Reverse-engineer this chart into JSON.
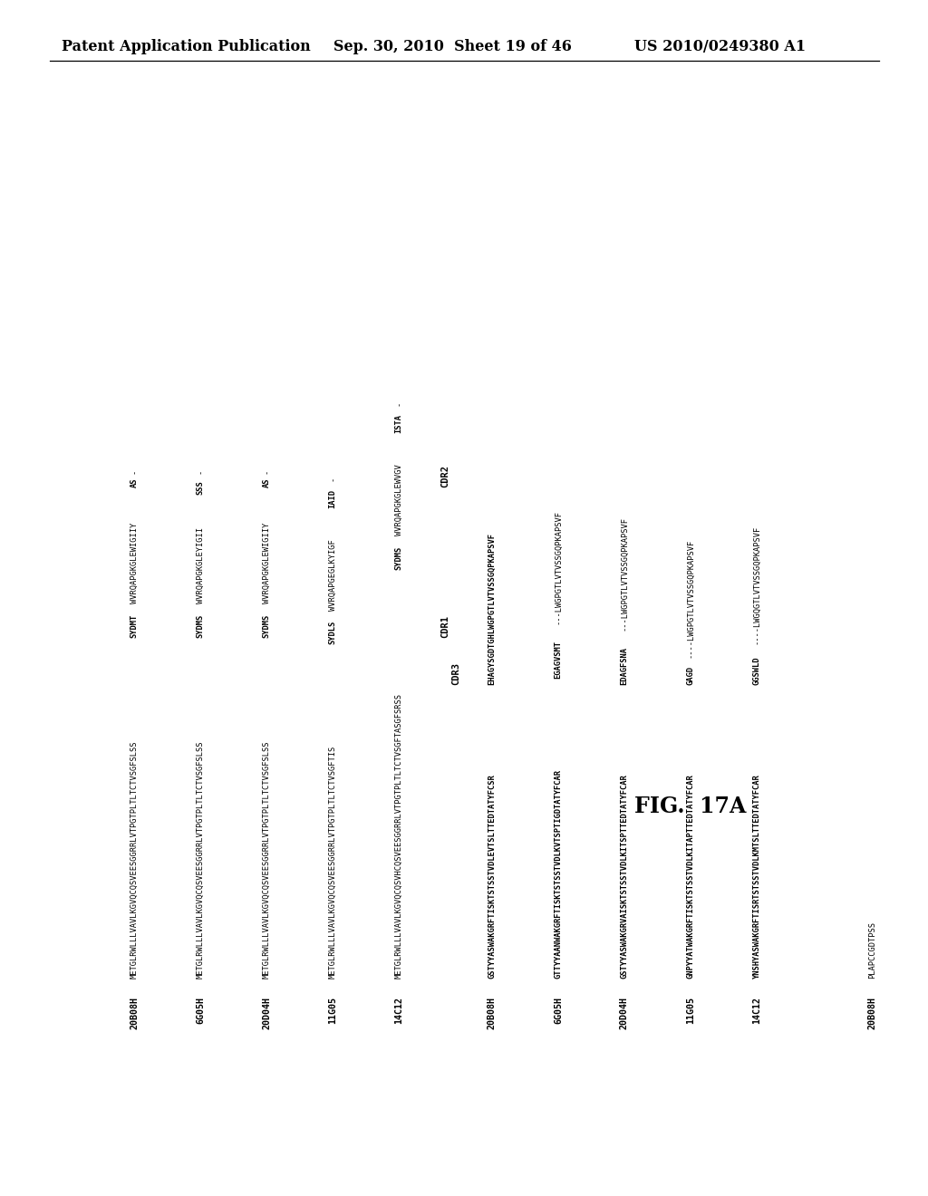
{
  "header_left": "Patent Application Publication",
  "header_center": "Sep. 30, 2010  Sheet 19 of 46",
  "header_right": "US 2010/0249380 A1",
  "figure_label": "FIG. 17A",
  "background_color": "#ffffff",
  "header_fontsize": 11.5,
  "section1_ids": [
    "20B08H",
    "6G05H",
    "20D04H",
    "11G05",
    "14C12"
  ],
  "section1_seqs": [
    [
      [
        "METGLRWLLLVAVLKGVQCQSVEESGGRRLVTPGTPLTLTCTVSGFSLSS",
        "normal"
      ],
      [
        "SYDMT",
        "bold"
      ],
      [
        "WVRQAPGKGLEWIGIIY",
        "normal"
      ],
      [
        "AS",
        "bold"
      ],
      [
        "-",
        "normal"
      ]
    ],
    [
      [
        "METGLRWLLLVAVLKGVQCQSVEESGGRRLVTPGTPLTLTCTVSGFSLSS",
        "normal"
      ],
      [
        "SYDMS",
        "bold"
      ],
      [
        "WVRQAPGKGLEYIGII",
        "normal"
      ],
      [
        "SSS",
        "bold"
      ],
      [
        "-",
        "normal"
      ]
    ],
    [
      [
        "METGLRWLLLVAVLKGVQCQSVEESGGRRLVTPGTPLTLTCTVSGFSLSS",
        "normal"
      ],
      [
        "SYDMS",
        "bold"
      ],
      [
        "WVRQAPGKGLEWIGIIY",
        "normal"
      ],
      [
        "AS",
        "bold"
      ],
      [
        "-",
        "normal"
      ]
    ],
    [
      [
        "METGLRWLLLVAVLKGVQCQSVEESGGRRLVTPGTPLTLTCTVSGFTIS",
        "normal"
      ],
      [
        "SYDLS",
        "bold"
      ],
      [
        "WVRQAPGEGLKYIGF",
        "normal"
      ],
      [
        "IAID",
        "bold"
      ],
      [
        "-",
        "normal"
      ]
    ],
    [
      [
        "METGLRWLLLVAVLKGVQCQSVHCQSVEESGGRRLVTPGTPLTLTCTVSGFTASGFSRSS",
        "normal"
      ],
      [
        "SYDMS",
        "bold"
      ],
      [
        "WVRQAPGKGLEWVGV",
        "normal"
      ],
      [
        "ISTA",
        "bold"
      ],
      [
        "-",
        "normal"
      ]
    ]
  ],
  "section2_ids": [
    "20B08H",
    "6G05H",
    "20D04H",
    "11G05",
    "14C12"
  ],
  "section2_seqs": [
    [
      [
        "GSTYYASWAKGRFTISKTSTSSTVDLEVTSLTTEDTATYFCSR",
        "bold"
      ],
      [
        "EHAGYSGDTGHLWGPGTLVTVSSGQPKAPSVF",
        "bold"
      ]
    ],
    [
      [
        "GTTYYAANWAKGRFTISKTSTSSTVDLKVTSPTIGDTATYFCAR",
        "bold"
      ],
      [
        "EGAGVSMT",
        "bold"
      ],
      [
        "---LWGPGTLVTVSSGQPKAPSVF",
        "normal"
      ]
    ],
    [
      [
        "GSTYYASWAKGRVAISKTSTSSTVDLKITSPTTEDTATYFCAR",
        "bold"
      ],
      [
        "EDAGFSNA",
        "bold"
      ],
      [
        "---LWGPGTLVTVSSGQPKAPSVF",
        "normal"
      ]
    ],
    [
      [
        "GNPYYATWAKGRFTISKTSTSSTVDLKITAPTTEDTATYFCAR",
        "bold"
      ],
      [
        "GAGD",
        "bold"
      ],
      [
        "----LWGPGTLVTVSSGQPKAPSVF",
        "normal"
      ]
    ],
    [
      [
        "YNSHYASWAKGRFTISRTSTSSTVDLKMTSLTTEDTATYFCAR",
        "bold"
      ],
      [
        "GGSWLD",
        "bold"
      ],
      [
        "----LWGQGTLVTVSSGQPKAPSVF",
        "normal"
      ]
    ]
  ],
  "section3_ids": [
    "20B08H",
    "6G05H",
    "20D04H",
    "11G05",
    "14C12"
  ],
  "section3_seq": "PLAPCCGDTPSS"
}
